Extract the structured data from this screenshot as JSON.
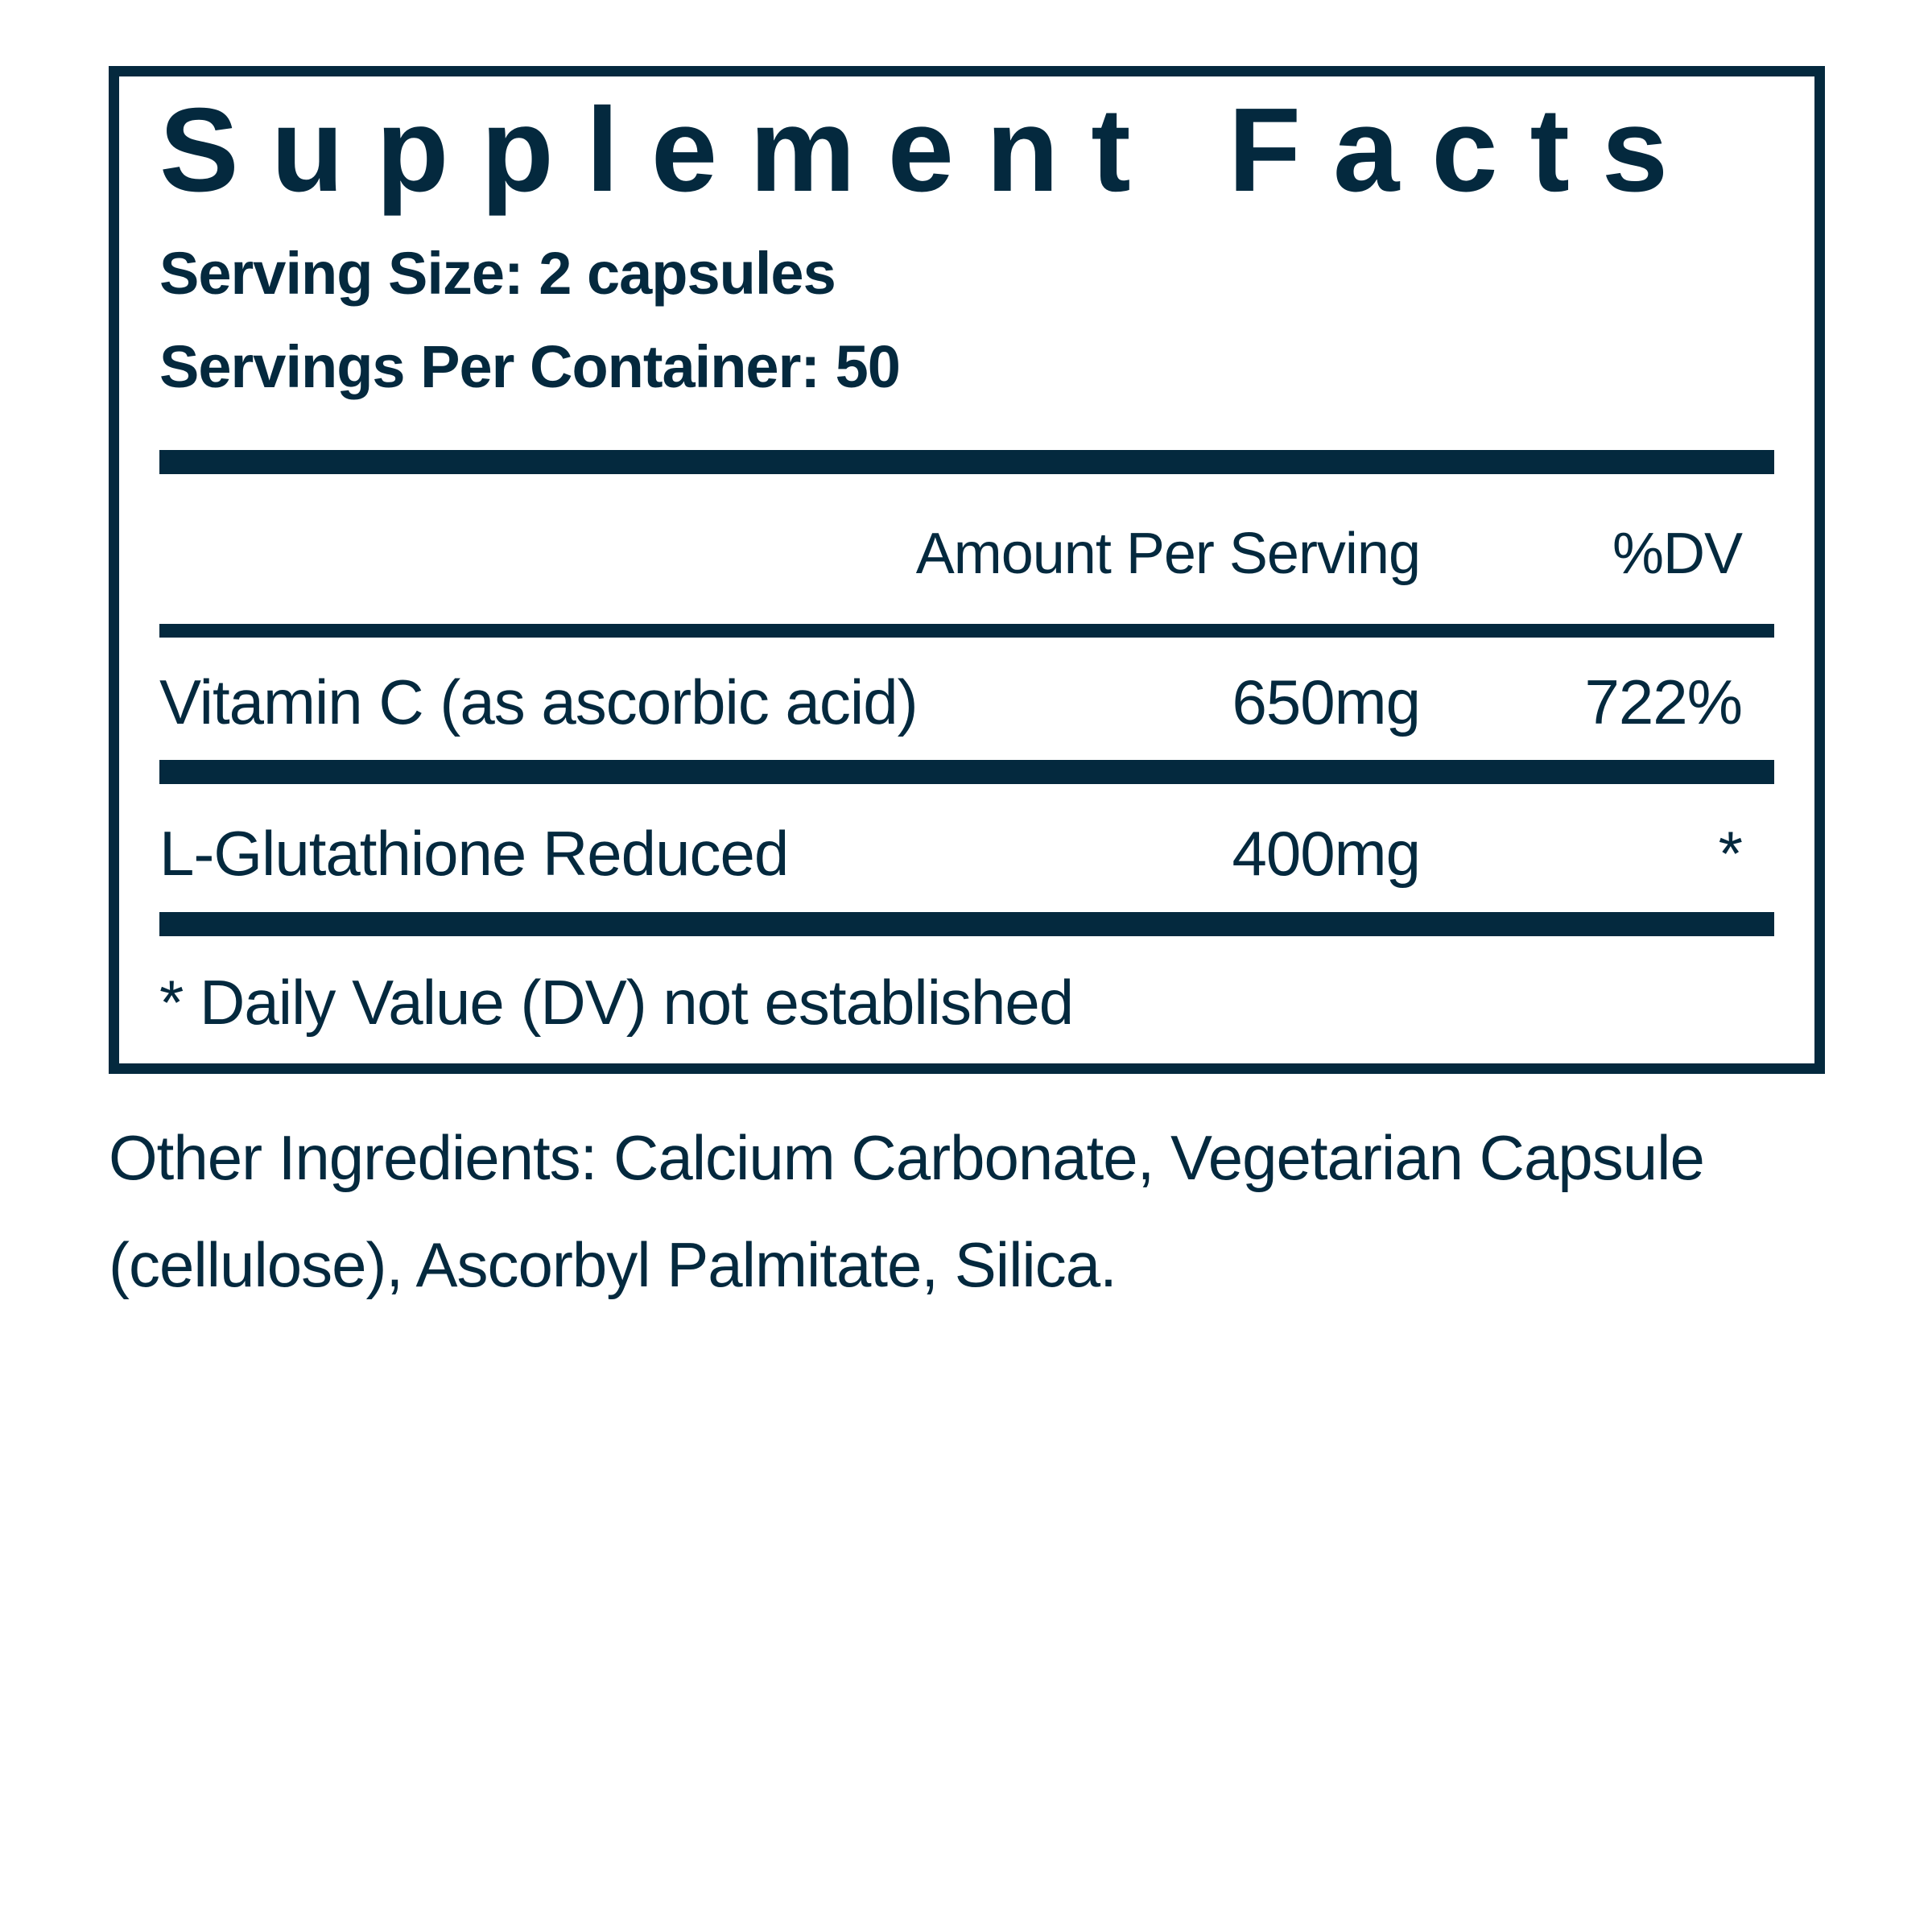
{
  "panel": {
    "title": "Supplement Facts",
    "serving_size": "Serving Size: 2 capsules",
    "servings_per_container": "Servings Per Container: 50",
    "columns": {
      "amount": "Amount Per Serving",
      "dv": "%DV"
    },
    "rows": [
      {
        "name": "Vitamin C (as ascorbic acid)",
        "amount": "650mg",
        "dv": "722%"
      },
      {
        "name": "L-Glutathione Reduced",
        "amount": "400mg",
        "dv": "*"
      }
    ],
    "footnote": "* Daily Value (DV) not established"
  },
  "other_ingredients": "Other Ingredients: Calcium Carbonate, Vegetarian Capsule (cellulose), Ascorbyl Palmitate, Silica.",
  "colors": {
    "ink": "#04293e",
    "background": "#ffffff"
  }
}
